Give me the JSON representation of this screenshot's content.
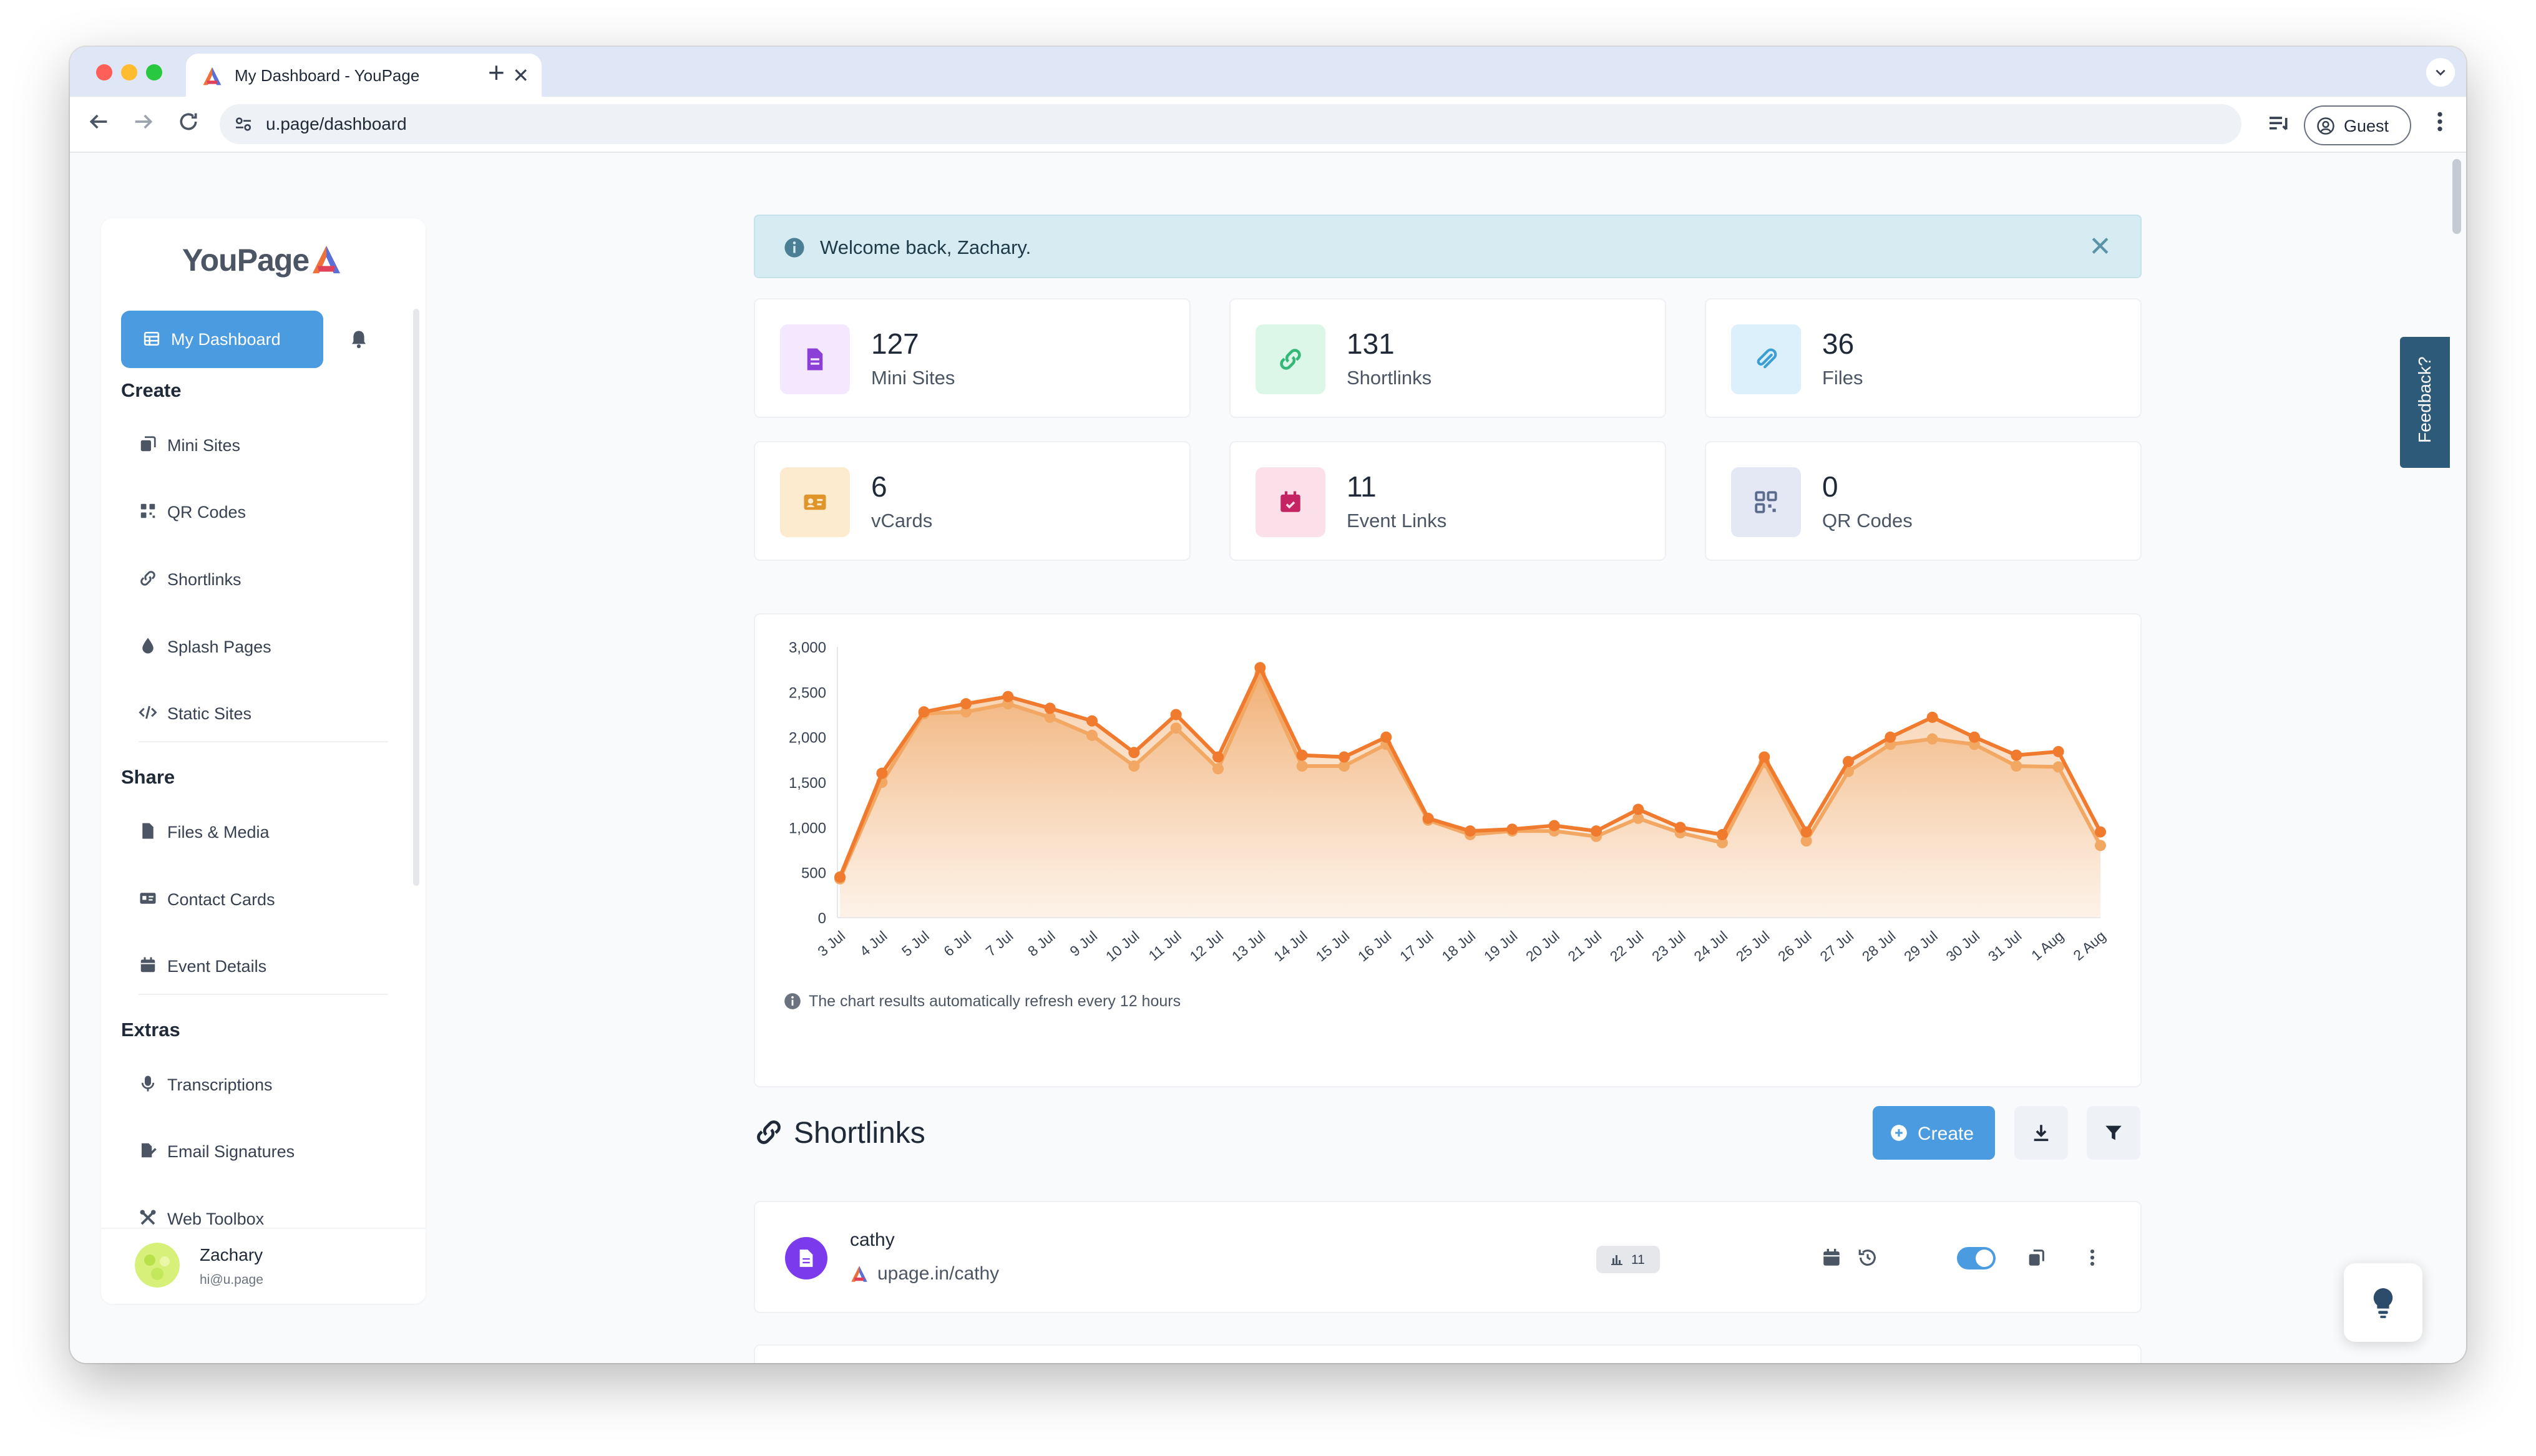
{
  "browser": {
    "tab_title": "My Dashboard - YouPage",
    "url": "u.page/dashboard",
    "profile_label": "Guest",
    "new_tab_symbol": "+",
    "close_tab_symbol": "✕"
  },
  "sidebar": {
    "logo": "YouPage",
    "dashboard_label": "My Dashboard",
    "sections": {
      "create": "Create",
      "share": "Share",
      "extras": "Extras"
    },
    "create_items": [
      "Mini Sites",
      "QR Codes",
      "Shortlinks",
      "Splash Pages",
      "Static Sites"
    ],
    "share_items": [
      "Files & Media",
      "Contact Cards",
      "Event Details"
    ],
    "extras_items": [
      "Transcriptions",
      "Email Signatures",
      "Web Toolbox"
    ],
    "user": {
      "name": "Zachary",
      "email": "hi@u.page"
    }
  },
  "welcome": {
    "text": "Welcome back, Zachary.",
    "close_symbol": "✕"
  },
  "stats": [
    {
      "value": "127",
      "label": "Mini Sites",
      "icon": "file-icon",
      "color": "#8b3fd6",
      "bg": "#f3e8fd"
    },
    {
      "value": "131",
      "label": "Shortlinks",
      "icon": "link-icon",
      "color": "#34b877",
      "bg": "#dcf7e8"
    },
    {
      "value": "36",
      "label": "Files",
      "icon": "paperclip-icon",
      "color": "#3b9fd4",
      "bg": "#dbf0fb"
    },
    {
      "value": "6",
      "label": "vCards",
      "icon": "id-card-icon",
      "color": "#e0952a",
      "bg": "#fdebd0"
    },
    {
      "value": "11",
      "label": "Event Links",
      "icon": "calendar-icon",
      "color": "#c42562",
      "bg": "#fbe0ea"
    },
    {
      "value": "0",
      "label": "QR Codes",
      "icon": "qrcode-icon",
      "color": "#5b6b8c",
      "bg": "#e3e8f4"
    }
  ],
  "chart_data": {
    "type": "area",
    "x": [
      "3 Jul",
      "4 Jul",
      "5 Jul",
      "6 Jul",
      "7 Jul",
      "8 Jul",
      "9 Jul",
      "10 Jul",
      "11 Jul",
      "12 Jul",
      "13 Jul",
      "14 Jul",
      "15 Jul",
      "16 Jul",
      "17 Jul",
      "18 Jul",
      "19 Jul",
      "20 Jul",
      "21 Jul",
      "22 Jul",
      "23 Jul",
      "24 Jul",
      "25 Jul",
      "26 Jul",
      "27 Jul",
      "28 Jul",
      "29 Jul",
      "30 Jul",
      "31 Jul",
      "1 Aug",
      "2 Aug"
    ],
    "series": [
      {
        "values": [
          450,
          1600,
          2280,
          2370,
          2450,
          2320,
          2180,
          1830,
          2250,
          1780,
          2770,
          1800,
          1780,
          2000,
          1100,
          960,
          980,
          1020,
          960,
          1200,
          1000,
          920,
          1780,
          950,
          1730,
          2000,
          2220,
          2000,
          1800,
          1840,
          950
        ],
        "color": "#f07a2e"
      },
      {
        "values": [
          430,
          1500,
          2260,
          2280,
          2370,
          2220,
          2020,
          1680,
          2100,
          1650,
          2700,
          1680,
          1680,
          1920,
          1080,
          920,
          960,
          960,
          900,
          1100,
          940,
          830,
          1720,
          850,
          1620,
          1920,
          1980,
          1920,
          1680,
          1670,
          800
        ],
        "color": "#f2a862"
      }
    ],
    "y_ticks": [
      "0",
      "500",
      "1,000",
      "1,500",
      "2,000",
      "2,500",
      "3,000"
    ],
    "ylim": [
      0,
      3000
    ],
    "grid": "y-axis baseline only",
    "note": "The chart results automatically refresh every 12 hours"
  },
  "shortlinks": {
    "title": "Shortlinks",
    "create_label": "Create",
    "rows": [
      {
        "name": "cathy",
        "url": "upage.in/cathy",
        "clicks": "11",
        "enabled": true
      }
    ]
  },
  "feedback_label": "Feedback?"
}
